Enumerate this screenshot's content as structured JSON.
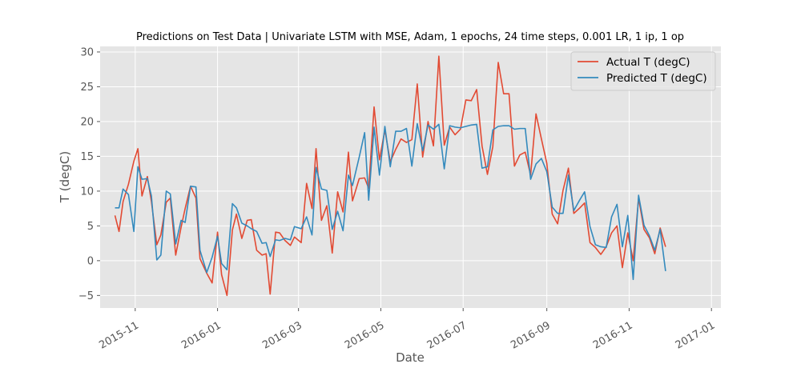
{
  "chart_data": {
    "type": "line",
    "title": "Predictions on Test Data  | Univariate LSTM with MSE, Adam, 1 epochs, 24 time steps, 0.001 LR, 1 ip, 1 op",
    "xlabel": "Date",
    "ylabel": "T (degC)",
    "xlim": [
      "2015-10-06",
      "2017-01-08"
    ],
    "ylim": [
      -6.8,
      30.8
    ],
    "grid": true,
    "legend_position": "top-right",
    "x_ticks": [
      {
        "date": "2015-11-01",
        "label": "2015-11"
      },
      {
        "date": "2016-01-01",
        "label": "2016-01"
      },
      {
        "date": "2016-03-01",
        "label": "2016-03"
      },
      {
        "date": "2016-05-01",
        "label": "2016-05"
      },
      {
        "date": "2016-07-01",
        "label": "2016-07"
      },
      {
        "date": "2016-09-01",
        "label": "2016-09"
      },
      {
        "date": "2016-11-01",
        "label": "2016-11"
      },
      {
        "date": "2017-01-01",
        "label": "2017-01"
      }
    ],
    "y_ticks": [
      {
        "value": -5,
        "label": "−5"
      },
      {
        "value": 0,
        "label": "0"
      },
      {
        "value": 5,
        "label": "5"
      },
      {
        "value": 10,
        "label": "10"
      },
      {
        "value": 15,
        "label": "15"
      },
      {
        "value": 20,
        "label": "20"
      },
      {
        "value": 25,
        "label": "25"
      },
      {
        "value": 30,
        "label": "30"
      }
    ],
    "series": [
      {
        "name": "Actual T (degC)",
        "color": "#E24A33",
        "points": [
          [
            "2015-10-17",
            6.5
          ],
          [
            "2015-10-20",
            4.2
          ],
          [
            "2015-10-23",
            8.5
          ],
          [
            "2015-10-27",
            11.0
          ],
          [
            "2015-10-31",
            14.3
          ],
          [
            "2015-11-03",
            16.1
          ],
          [
            "2015-11-06",
            9.3
          ],
          [
            "2015-11-10",
            12.1
          ],
          [
            "2015-11-13",
            8.5
          ],
          [
            "2015-11-17",
            2.3
          ],
          [
            "2015-11-20",
            3.7
          ],
          [
            "2015-11-24",
            8.4
          ],
          [
            "2015-11-27",
            9.0
          ],
          [
            "2015-12-01",
            0.8
          ],
          [
            "2015-12-05",
            4.8
          ],
          [
            "2015-12-08",
            7.5
          ],
          [
            "2015-12-12",
            10.7
          ],
          [
            "2015-12-16",
            9.0
          ],
          [
            "2015-12-19",
            0.3
          ],
          [
            "2015-12-24",
            -1.8
          ],
          [
            "2015-12-28",
            -3.2
          ],
          [
            "2016-01-01",
            4.1
          ],
          [
            "2016-01-04",
            -2.0
          ],
          [
            "2016-01-08",
            -5.0
          ],
          [
            "2016-01-12",
            4.4
          ],
          [
            "2016-01-15",
            6.7
          ],
          [
            "2016-01-19",
            3.2
          ],
          [
            "2016-01-23",
            5.8
          ],
          [
            "2016-01-26",
            5.9
          ],
          [
            "2016-01-30",
            1.5
          ],
          [
            "2016-02-03",
            0.8
          ],
          [
            "2016-02-06",
            1.0
          ],
          [
            "2016-02-09",
            -4.8
          ],
          [
            "2016-02-13",
            4.1
          ],
          [
            "2016-02-16",
            4.0
          ],
          [
            "2016-02-20",
            2.9
          ],
          [
            "2016-02-24",
            2.2
          ],
          [
            "2016-02-27",
            3.4
          ],
          [
            "2016-03-03",
            2.6
          ],
          [
            "2016-03-07",
            11.1
          ],
          [
            "2016-03-11",
            7.5
          ],
          [
            "2016-03-14",
            16.1
          ],
          [
            "2016-03-18",
            5.8
          ],
          [
            "2016-03-22",
            7.9
          ],
          [
            "2016-03-26",
            1.1
          ],
          [
            "2016-03-30",
            9.9
          ],
          [
            "2016-04-03",
            7.0
          ],
          [
            "2016-04-07",
            15.6
          ],
          [
            "2016-04-10",
            8.6
          ],
          [
            "2016-04-15",
            11.8
          ],
          [
            "2016-04-19",
            11.9
          ],
          [
            "2016-04-22",
            10.4
          ],
          [
            "2016-04-26",
            22.1
          ],
          [
            "2016-04-30",
            14.5
          ],
          [
            "2016-05-04",
            18.8
          ],
          [
            "2016-05-08",
            14.2
          ],
          [
            "2016-05-12",
            16.0
          ],
          [
            "2016-05-16",
            17.5
          ],
          [
            "2016-05-20",
            17.0
          ],
          [
            "2016-05-24",
            17.4
          ],
          [
            "2016-05-28",
            25.4
          ],
          [
            "2016-06-01",
            14.9
          ],
          [
            "2016-06-05",
            20.0
          ],
          [
            "2016-06-09",
            16.5
          ],
          [
            "2016-06-13",
            29.4
          ],
          [
            "2016-06-17",
            16.6
          ],
          [
            "2016-06-21",
            19.2
          ],
          [
            "2016-06-25",
            18.1
          ],
          [
            "2016-06-29",
            18.9
          ],
          [
            "2016-07-03",
            23.1
          ],
          [
            "2016-07-07",
            23.0
          ],
          [
            "2016-07-11",
            24.6
          ],
          [
            "2016-07-15",
            16.5
          ],
          [
            "2016-07-19",
            12.4
          ],
          [
            "2016-07-23",
            16.4
          ],
          [
            "2016-07-27",
            28.5
          ],
          [
            "2016-07-31",
            24.0
          ],
          [
            "2016-08-04",
            24.0
          ],
          [
            "2016-08-08",
            13.6
          ],
          [
            "2016-08-12",
            15.2
          ],
          [
            "2016-08-16",
            15.6
          ],
          [
            "2016-08-20",
            12.3
          ],
          [
            "2016-08-24",
            21.1
          ],
          [
            "2016-08-28",
            17.5
          ],
          [
            "2016-09-01",
            14.0
          ],
          [
            "2016-09-05",
            6.7
          ],
          [
            "2016-09-09",
            5.3
          ],
          [
            "2016-09-13",
            10.1
          ],
          [
            "2016-09-17",
            13.3
          ],
          [
            "2016-09-21",
            6.8
          ],
          [
            "2016-09-25",
            7.5
          ],
          [
            "2016-09-29",
            8.3
          ],
          [
            "2016-10-03",
            2.6
          ],
          [
            "2016-10-07",
            1.9
          ],
          [
            "2016-10-11",
            0.9
          ],
          [
            "2016-10-15",
            2.0
          ],
          [
            "2016-10-19",
            4.0
          ],
          [
            "2016-10-23",
            5.0
          ],
          [
            "2016-10-27",
            -1.0
          ],
          [
            "2016-10-31",
            4.0
          ],
          [
            "2016-11-04",
            0.0
          ],
          [
            "2016-11-08",
            9.0
          ],
          [
            "2016-11-12",
            4.5
          ],
          [
            "2016-11-16",
            3.3
          ],
          [
            "2016-11-20",
            1.0
          ],
          [
            "2016-11-24",
            4.7
          ],
          [
            "2016-11-28",
            2.0
          ]
        ]
      },
      {
        "name": "Predicted T (degC)",
        "color": "#348ABD",
        "points": [
          [
            "2015-10-17",
            7.6
          ],
          [
            "2015-10-20",
            7.6
          ],
          [
            "2015-10-23",
            10.3
          ],
          [
            "2015-10-27",
            9.5
          ],
          [
            "2015-10-31",
            4.2
          ],
          [
            "2015-11-03",
            13.5
          ],
          [
            "2015-11-06",
            11.7
          ],
          [
            "2015-11-10",
            11.8
          ],
          [
            "2015-11-13",
            9.3
          ],
          [
            "2015-11-17",
            0.1
          ],
          [
            "2015-11-20",
            0.8
          ],
          [
            "2015-11-24",
            10.0
          ],
          [
            "2015-11-27",
            9.6
          ],
          [
            "2015-12-01",
            2.4
          ],
          [
            "2015-12-05",
            5.8
          ],
          [
            "2015-12-08",
            5.5
          ],
          [
            "2015-12-12",
            10.7
          ],
          [
            "2015-12-16",
            10.6
          ],
          [
            "2015-12-19",
            1.5
          ],
          [
            "2015-12-24",
            -1.7
          ],
          [
            "2015-12-28",
            0.5
          ],
          [
            "2016-01-01",
            3.5
          ],
          [
            "2016-01-04",
            -0.4
          ],
          [
            "2016-01-08",
            -1.3
          ],
          [
            "2016-01-12",
            8.2
          ],
          [
            "2016-01-15",
            7.6
          ],
          [
            "2016-01-19",
            5.4
          ],
          [
            "2016-01-23",
            5.0
          ],
          [
            "2016-01-26",
            4.6
          ],
          [
            "2016-01-30",
            4.2
          ],
          [
            "2016-02-03",
            2.5
          ],
          [
            "2016-02-06",
            2.6
          ],
          [
            "2016-02-09",
            0.6
          ],
          [
            "2016-02-13",
            3.0
          ],
          [
            "2016-02-16",
            2.9
          ],
          [
            "2016-02-20",
            3.2
          ],
          [
            "2016-02-24",
            3.0
          ],
          [
            "2016-02-27",
            4.9
          ],
          [
            "2016-03-03",
            4.6
          ],
          [
            "2016-03-07",
            6.3
          ],
          [
            "2016-03-11",
            3.7
          ],
          [
            "2016-03-14",
            13.4
          ],
          [
            "2016-03-18",
            10.3
          ],
          [
            "2016-03-22",
            10.1
          ],
          [
            "2016-03-26",
            4.5
          ],
          [
            "2016-03-30",
            7.1
          ],
          [
            "2016-04-03",
            4.3
          ],
          [
            "2016-04-07",
            12.3
          ],
          [
            "2016-04-10",
            10.8
          ],
          [
            "2016-04-15",
            14.9
          ],
          [
            "2016-04-19",
            18.4
          ],
          [
            "2016-04-22",
            8.7
          ],
          [
            "2016-04-26",
            19.2
          ],
          [
            "2016-04-30",
            12.3
          ],
          [
            "2016-05-04",
            19.3
          ],
          [
            "2016-05-08",
            13.5
          ],
          [
            "2016-05-12",
            18.6
          ],
          [
            "2016-05-16",
            18.6
          ],
          [
            "2016-05-20",
            19.0
          ],
          [
            "2016-05-24",
            13.6
          ],
          [
            "2016-05-28",
            19.7
          ],
          [
            "2016-06-01",
            15.8
          ],
          [
            "2016-06-05",
            19.5
          ],
          [
            "2016-06-09",
            18.9
          ],
          [
            "2016-06-13",
            19.6
          ],
          [
            "2016-06-17",
            13.2
          ],
          [
            "2016-06-21",
            19.4
          ],
          [
            "2016-06-25",
            19.2
          ],
          [
            "2016-06-29",
            19.1
          ],
          [
            "2016-07-03",
            19.3
          ],
          [
            "2016-07-07",
            19.5
          ],
          [
            "2016-07-11",
            19.6
          ],
          [
            "2016-07-15",
            13.3
          ],
          [
            "2016-07-19",
            13.5
          ],
          [
            "2016-07-23",
            18.8
          ],
          [
            "2016-07-27",
            19.3
          ],
          [
            "2016-07-31",
            19.4
          ],
          [
            "2016-08-04",
            19.4
          ],
          [
            "2016-08-08",
            18.9
          ],
          [
            "2016-08-12",
            19.0
          ],
          [
            "2016-08-16",
            19.0
          ],
          [
            "2016-08-20",
            11.7
          ],
          [
            "2016-08-24",
            13.9
          ],
          [
            "2016-08-28",
            14.7
          ],
          [
            "2016-09-01",
            12.8
          ],
          [
            "2016-09-05",
            7.7
          ],
          [
            "2016-09-09",
            6.8
          ],
          [
            "2016-09-13",
            6.8
          ],
          [
            "2016-09-17",
            12.3
          ],
          [
            "2016-09-21",
            7.2
          ],
          [
            "2016-09-25",
            8.6
          ],
          [
            "2016-09-29",
            9.9
          ],
          [
            "2016-10-03",
            4.9
          ],
          [
            "2016-10-07",
            2.3
          ],
          [
            "2016-10-11",
            2.0
          ],
          [
            "2016-10-15",
            1.9
          ],
          [
            "2016-10-19",
            6.3
          ],
          [
            "2016-10-23",
            8.1
          ],
          [
            "2016-10-27",
            2.0
          ],
          [
            "2016-10-31",
            6.5
          ],
          [
            "2016-11-04",
            -2.7
          ],
          [
            "2016-11-08",
            9.4
          ],
          [
            "2016-11-12",
            5.1
          ],
          [
            "2016-11-16",
            3.6
          ],
          [
            "2016-11-20",
            1.5
          ],
          [
            "2016-11-24",
            4.5
          ],
          [
            "2016-11-28",
            -1.5
          ]
        ]
      }
    ]
  }
}
